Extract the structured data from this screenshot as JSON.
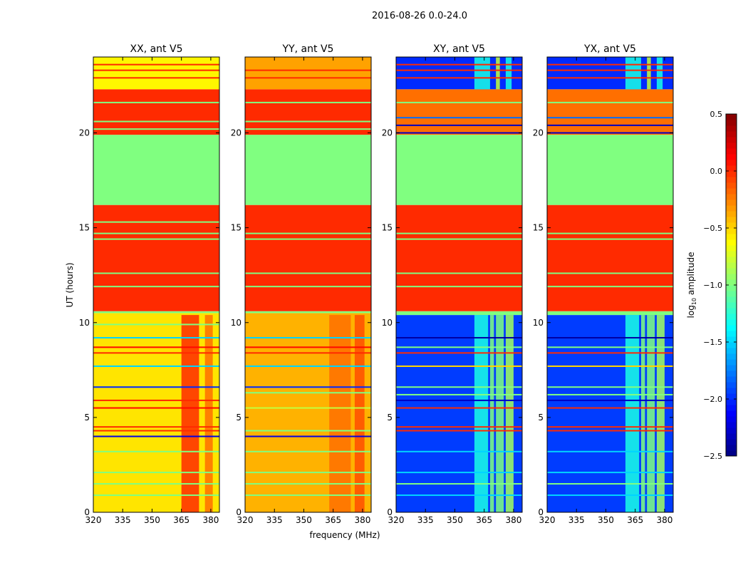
{
  "chart_data": {
    "type": "heatmap",
    "suptitle": "2016-08-26 0.0-24.0",
    "xlabel": "frequency (MHz)",
    "ylabel": "UT (hours)",
    "xlim": [
      320,
      384.4
    ],
    "ylim": [
      0,
      24
    ],
    "xticks": [
      "320",
      "335",
      "350",
      "365",
      "380"
    ],
    "xtick_values": [
      320,
      335,
      350,
      365,
      380
    ],
    "yticks": [
      "0",
      "5",
      "10",
      "15",
      "20"
    ],
    "ytick_values": [
      0,
      5,
      10,
      15,
      20
    ],
    "colorbar": {
      "label_prefix": "log",
      "label_sub": "10",
      "label_suffix": " amplitude",
      "range": [
        -2.5,
        0.5
      ],
      "ticks": [
        "0.5",
        "0.0",
        "−0.5",
        "−1.0",
        "−1.5",
        "−2.0",
        "−2.5"
      ],
      "tick_values": [
        0.5,
        0.0,
        -0.5,
        -1.0,
        -1.5,
        -2.0,
        -2.5
      ]
    },
    "panels": [
      {
        "title": "XX, ant V5",
        "bands": [
          [
            0,
            10.5,
            -0.55
          ],
          [
            10.5,
            10.6,
            -1.0
          ],
          [
            10.6,
            16.2,
            0.0
          ],
          [
            16.2,
            19.9,
            -1.0
          ],
          [
            19.9,
            22.3,
            0.0
          ],
          [
            22.3,
            24,
            -0.6
          ]
        ],
        "lines": [
          [
            0.9,
            -1.0
          ],
          [
            1.5,
            -1.0
          ],
          [
            2.1,
            -1.0
          ],
          [
            3.2,
            -1.0
          ],
          [
            4.0,
            -2.2
          ],
          [
            4.3,
            0.0
          ],
          [
            4.5,
            0.0
          ],
          [
            5.5,
            0.1
          ],
          [
            5.9,
            0.0
          ],
          [
            6.6,
            -2.0
          ],
          [
            7.7,
            -1.5
          ],
          [
            8.4,
            0.0
          ],
          [
            8.7,
            0.1
          ],
          [
            9.2,
            -1.5
          ],
          [
            9.9,
            -1.0
          ],
          [
            11.9,
            -1.0
          ],
          [
            12.6,
            -1.0
          ],
          [
            14.4,
            -1.0
          ],
          [
            14.7,
            -1.0
          ],
          [
            15.3,
            -1.0
          ],
          [
            20.2,
            -1.0
          ],
          [
            20.6,
            -1.0
          ],
          [
            21.6,
            -1.0
          ],
          [
            22.9,
            0.0
          ],
          [
            23.3,
            0.0
          ],
          [
            23.6,
            0.0
          ]
        ],
        "columns": [
          [
            365,
            374,
            0.0,
            0,
            10.4
          ],
          [
            377,
            381,
            -0.2,
            0,
            10.4
          ]
        ]
      },
      {
        "title": "YY, ant V5",
        "bands": [
          [
            0,
            10.5,
            -0.4
          ],
          [
            10.5,
            10.6,
            -1.0
          ],
          [
            10.6,
            16.2,
            0.0
          ],
          [
            16.2,
            19.9,
            -1.0
          ],
          [
            19.9,
            22.3,
            0.0
          ],
          [
            22.3,
            24,
            -0.35
          ]
        ],
        "lines": [
          [
            0.9,
            -1.0
          ],
          [
            1.5,
            -1.0
          ],
          [
            2.1,
            -1.0
          ],
          [
            3.2,
            -1.0
          ],
          [
            4.0,
            -2.2
          ],
          [
            4.3,
            -1.0
          ],
          [
            5.5,
            -0.8
          ],
          [
            6.3,
            -1.0
          ],
          [
            6.6,
            -2.0
          ],
          [
            7.7,
            -1.5
          ],
          [
            8.4,
            0.0
          ],
          [
            8.7,
            0.1
          ],
          [
            9.2,
            -1.5
          ],
          [
            11.9,
            -1.0
          ],
          [
            12.6,
            -1.0
          ],
          [
            14.4,
            -1.0
          ],
          [
            14.7,
            -1.0
          ],
          [
            20.2,
            -1.0
          ],
          [
            20.6,
            -1.0
          ],
          [
            21.6,
            -1.0
          ],
          [
            22.9,
            0.0
          ],
          [
            23.3,
            0.0
          ]
        ],
        "columns": [
          [
            363,
            374,
            -0.2,
            0,
            10.4
          ],
          [
            376,
            381,
            -0.1,
            0,
            10.4
          ]
        ]
      },
      {
        "title": "XY, ant V5",
        "bands": [
          [
            0,
            10.4,
            -1.95
          ],
          [
            10.4,
            10.6,
            -1.0
          ],
          [
            10.6,
            16.2,
            0.0
          ],
          [
            16.2,
            19.9,
            -1.0
          ],
          [
            19.9,
            22.3,
            -0.2
          ],
          [
            22.3,
            24,
            -2.0
          ]
        ],
        "lines": [
          [
            0.9,
            -1.5
          ],
          [
            1.5,
            -1.0
          ],
          [
            2.1,
            -1.5
          ],
          [
            3.2,
            -1.5
          ],
          [
            4.3,
            0.0
          ],
          [
            4.5,
            0.0
          ],
          [
            5.5,
            0.0
          ],
          [
            5.9,
            -2.3
          ],
          [
            6.2,
            -1.0
          ],
          [
            6.6,
            -1.0
          ],
          [
            7.7,
            -0.5
          ],
          [
            8.4,
            0.0
          ],
          [
            8.7,
            -1.0
          ],
          [
            9.2,
            -2.4
          ],
          [
            11.9,
            -1.0
          ],
          [
            12.6,
            -1.0
          ],
          [
            14.4,
            -1.0
          ],
          [
            14.7,
            -1.0
          ],
          [
            20.0,
            -2.3
          ],
          [
            20.4,
            -2.3
          ],
          [
            20.8,
            -1.8
          ],
          [
            21.6,
            -1.0
          ],
          [
            22.9,
            0.0
          ],
          [
            23.3,
            0.0
          ],
          [
            23.6,
            0.0
          ]
        ],
        "columns": [
          [
            360,
            367,
            -1.3,
            0,
            10.4
          ],
          [
            368,
            370,
            -1.0,
            0,
            10.4
          ],
          [
            371,
            375,
            -1.0,
            0,
            10.4
          ],
          [
            376,
            380,
            -0.9,
            0,
            10.4
          ],
          [
            360,
            368,
            -1.3,
            22.3,
            24
          ],
          [
            371,
            373,
            -0.8,
            22.3,
            24
          ],
          [
            376,
            379,
            -1.3,
            22.3,
            24
          ]
        ]
      },
      {
        "title": "YX, ant V5",
        "bands": [
          [
            0,
            10.4,
            -1.95
          ],
          [
            10.4,
            10.6,
            -1.0
          ],
          [
            10.6,
            16.2,
            0.0
          ],
          [
            16.2,
            19.9,
            -1.0
          ],
          [
            19.9,
            22.3,
            -0.2
          ],
          [
            22.3,
            24,
            -2.0
          ]
        ],
        "lines": [
          [
            0.9,
            -1.5
          ],
          [
            1.5,
            -1.0
          ],
          [
            2.1,
            -1.5
          ],
          [
            3.2,
            -1.5
          ],
          [
            4.3,
            0.0
          ],
          [
            4.5,
            0.0
          ],
          [
            5.5,
            0.0
          ],
          [
            5.9,
            -2.3
          ],
          [
            6.2,
            -1.0
          ],
          [
            6.6,
            -1.0
          ],
          [
            7.7,
            -0.5
          ],
          [
            8.4,
            0.0
          ],
          [
            8.7,
            -1.0
          ],
          [
            9.2,
            -2.4
          ],
          [
            11.9,
            -1.0
          ],
          [
            12.6,
            -1.0
          ],
          [
            14.4,
            -1.0
          ],
          [
            14.7,
            -1.0
          ],
          [
            20.0,
            -2.3
          ],
          [
            20.4,
            -2.3
          ],
          [
            20.8,
            -1.8
          ],
          [
            21.6,
            -1.0
          ],
          [
            22.9,
            0.0
          ],
          [
            23.3,
            0.0
          ],
          [
            23.6,
            0.0
          ]
        ],
        "columns": [
          [
            360,
            367,
            -1.3,
            0,
            10.4
          ],
          [
            368,
            370,
            -1.0,
            0,
            10.4
          ],
          [
            371,
            375,
            -1.0,
            0,
            10.4
          ],
          [
            376,
            380,
            -0.9,
            0,
            10.4
          ],
          [
            360,
            368,
            -1.3,
            22.3,
            24
          ],
          [
            371,
            373,
            -0.8,
            22.3,
            24
          ],
          [
            376,
            379,
            -1.3,
            22.3,
            24
          ]
        ]
      }
    ]
  }
}
